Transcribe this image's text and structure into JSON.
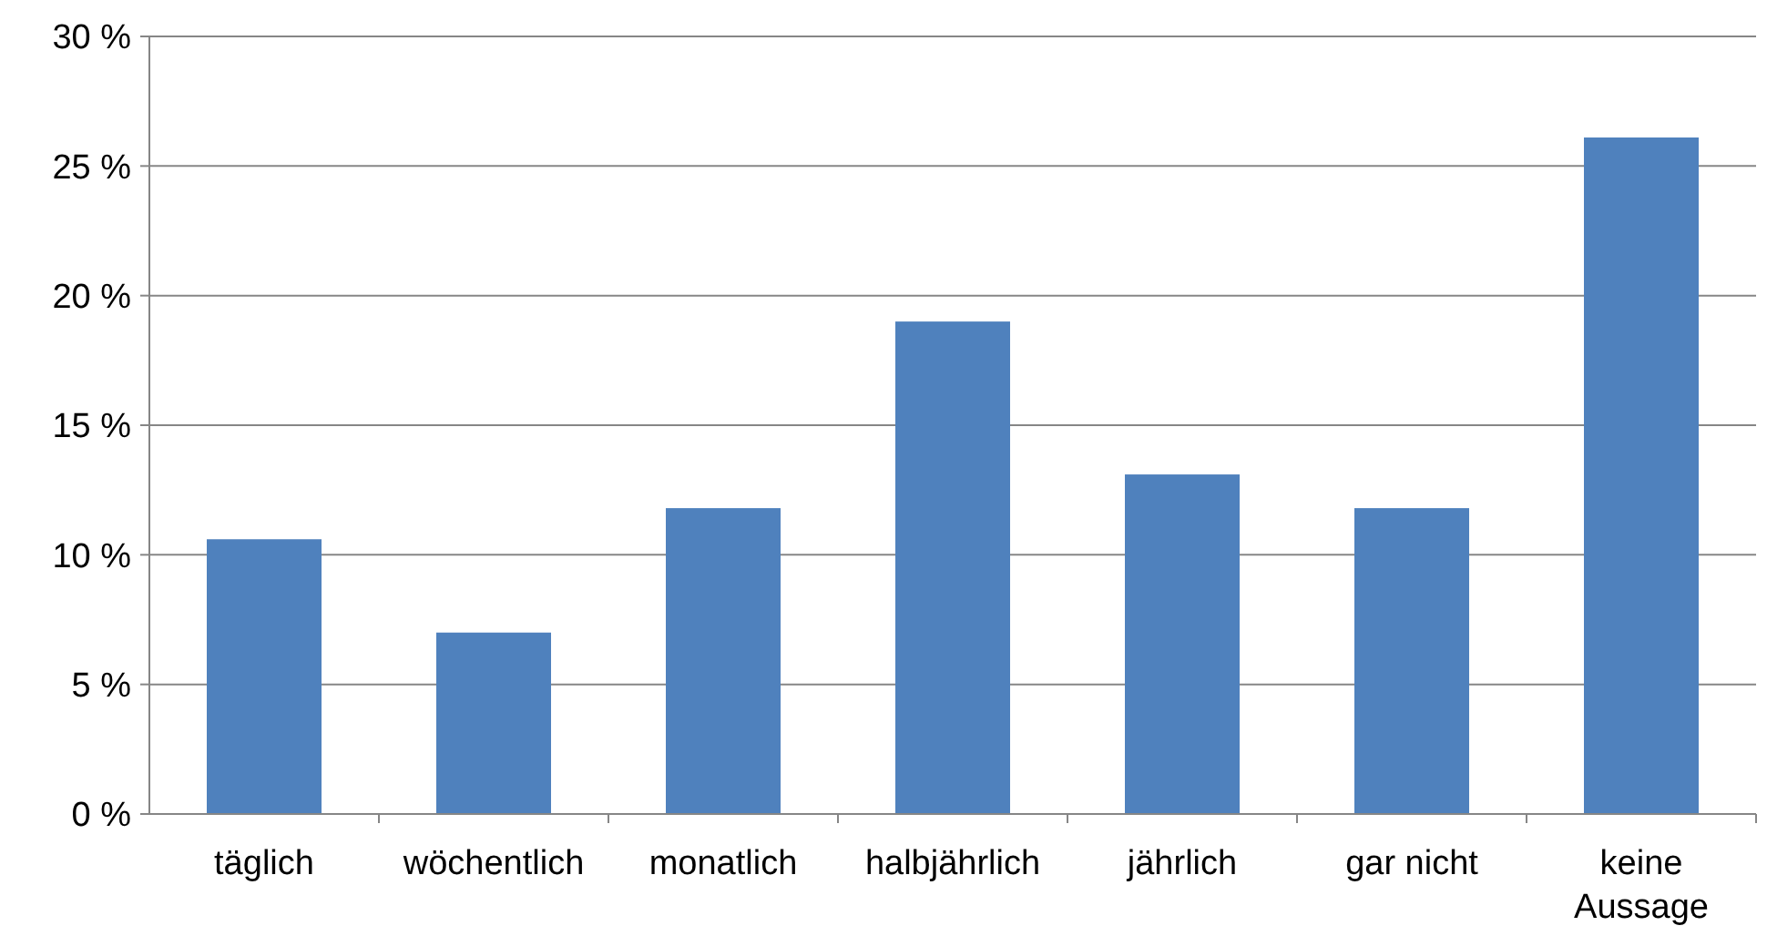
{
  "chart_data": {
    "type": "bar",
    "categories": [
      "täglich",
      "wöchentlich",
      "monatlich",
      "halbjährlich",
      "jährlich",
      "gar nicht",
      "keine Aussage"
    ],
    "values": [
      10.6,
      7.0,
      11.8,
      19.0,
      13.1,
      11.8,
      26.1
    ],
    "color": "#4f81bd",
    "ylim": [
      0,
      30
    ],
    "yticks": [
      {
        "value": 0,
        "label": "0 %"
      },
      {
        "value": 5,
        "label": "5 %"
      },
      {
        "value": 10,
        "label": "10 %"
      },
      {
        "value": 15,
        "label": "15 %"
      },
      {
        "value": 20,
        "label": "20 %"
      },
      {
        "value": 25,
        "label": "25 %"
      },
      {
        "value": 30,
        "label": "30 %"
      }
    ],
    "grid": "y"
  }
}
